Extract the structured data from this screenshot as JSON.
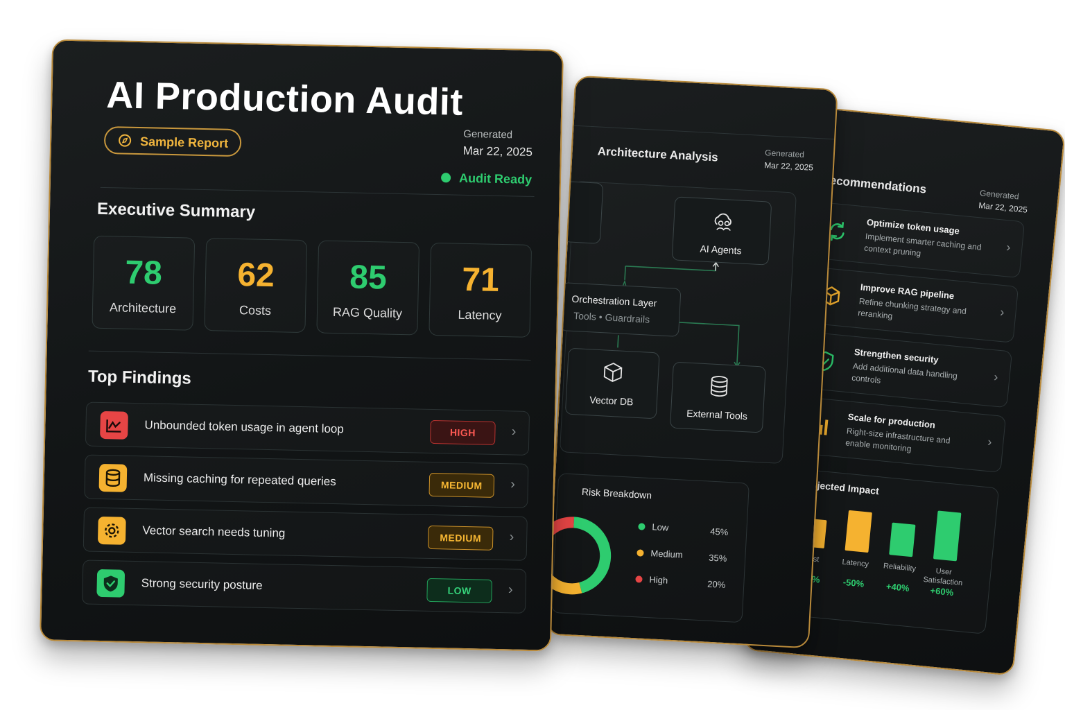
{
  "colors": {
    "accent_gold": "#c9983d",
    "green": "#2ecc6f",
    "amber": "#f5b230",
    "red": "#e64545",
    "card_bg": "#121516"
  },
  "main": {
    "title": "AI Production Audit",
    "badge": "Sample Report",
    "generated_label": "Generated",
    "generated_date": "Mar 22, 2025",
    "status": "Audit Ready",
    "summary_title": "Executive Summary",
    "scores": [
      {
        "value": "78",
        "label": "Architecture",
        "color": "#2ecc6f"
      },
      {
        "value": "62",
        "label": "Costs",
        "color": "#f5b230"
      },
      {
        "value": "85",
        "label": "RAG Quality",
        "color": "#2ecc6f"
      },
      {
        "value": "71",
        "label": "Latency",
        "color": "#f5b230"
      }
    ],
    "findings_title": "Top Findings",
    "findings": [
      {
        "text": "Unbounded token usage in agent loop",
        "severity": "HIGH",
        "icon": "chart-spike-icon"
      },
      {
        "text": "Missing caching for repeated queries",
        "severity": "MEDIUM",
        "icon": "database-icon"
      },
      {
        "text": "Vector search needs tuning",
        "severity": "MEDIUM",
        "icon": "gear-icon"
      },
      {
        "text": "Strong security posture",
        "severity": "LOW",
        "icon": "shield-check-icon"
      }
    ]
  },
  "architecture": {
    "title": "Architecture Analysis",
    "generated_label": "Generated",
    "generated_date": "Mar 22, 2025",
    "nodes": {
      "agents": "AI Agents",
      "orchestration": "Orchestration Layer",
      "orchestration_sub": "Tools • Guardrails",
      "vector_db": "Vector DB",
      "external_tools": "External Tools"
    },
    "risk_title": "Risk Breakdown",
    "risk": [
      {
        "label": "Low",
        "percent": 45,
        "display": "45%",
        "color": "#2ecc6f"
      },
      {
        "label": "Medium",
        "percent": 35,
        "display": "35%",
        "color": "#f5b230"
      },
      {
        "label": "High",
        "percent": 20,
        "display": "20%",
        "color": "#e64545"
      }
    ]
  },
  "recommendations": {
    "title": "Recommendations",
    "generated_label": "Generated",
    "generated_date": "Mar 22, 2025",
    "items": [
      {
        "title": "Optimize token usage",
        "desc": "Implement smarter caching and context pruning",
        "icon": "refresh-icon"
      },
      {
        "title": "Improve RAG pipeline",
        "desc": "Refine chunking strategy and reranking",
        "icon": "cube-icon"
      },
      {
        "title": "Strengthen security",
        "desc": "Add additional data handling controls",
        "icon": "shield-icon"
      },
      {
        "title": "Scale for production",
        "desc": "Right-size infrastructure and enable monitoring",
        "icon": "bar-chart-icon"
      }
    ],
    "impact_title": "Projected Impact"
  },
  "chart_data": {
    "type": "bar",
    "title": "Projected Impact",
    "categories": [
      "Cost",
      "Latency",
      "Reliability",
      "User Satisfaction"
    ],
    "values": [
      -35,
      -50,
      40,
      60
    ],
    "labels": [
      "-35%",
      "-50%",
      "+40%",
      "+60%"
    ],
    "colors": [
      "#f5b230",
      "#f5b230",
      "#2ecc6f",
      "#2ecc6f"
    ]
  }
}
